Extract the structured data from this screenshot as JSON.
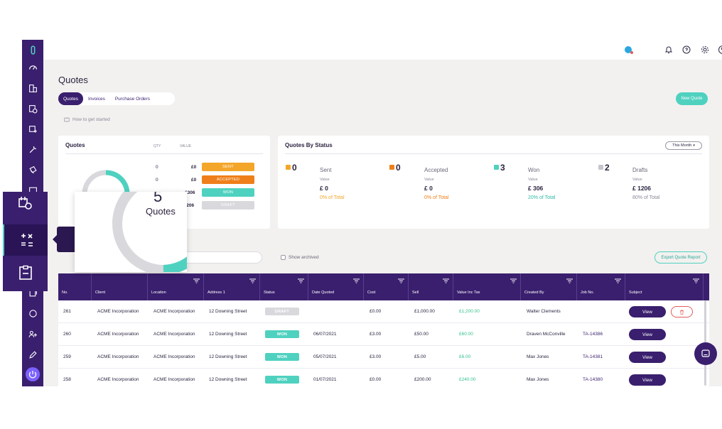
{
  "page": {
    "title": "Quotes"
  },
  "tabs": [
    {
      "label": "Quotes",
      "active": true
    },
    {
      "label": "Invoices",
      "active": false
    },
    {
      "label": "Purchase Orders",
      "active": false
    }
  ],
  "new_quote_label": "New Quote",
  "how_to_label": "How to get started",
  "quotes_card": {
    "title": "Quotes",
    "qty_header": "QTY",
    "value_header": "VALUE",
    "donut_center": "5",
    "donut_label": "Quotes",
    "rows": [
      {
        "qty": "0",
        "value": "£0",
        "status": "SENT",
        "color": "#f4a62a"
      },
      {
        "qty": "0",
        "value": "£0",
        "status": "ACCEPTED",
        "color": "#ef7f1a"
      },
      {
        "qty": "",
        "value": "£306",
        "status": "WON",
        "color": "#4fd1c0"
      },
      {
        "qty": "",
        "value": "£1206",
        "status": "DRAFT",
        "color": "#d9d8dc"
      }
    ]
  },
  "status_card": {
    "title": "Quotes By Status",
    "period": "This Month",
    "items": [
      {
        "count": "0",
        "label": "Sent",
        "value_label": "Value",
        "value": "£ 0",
        "pct": "0% of Total",
        "color": "#f4a62a",
        "pct_color": "#f4a62a"
      },
      {
        "count": "0",
        "label": "Accepted",
        "value_label": "Value",
        "value": "£ 0",
        "pct": "0% of Total",
        "color": "#ef7f1a",
        "pct_color": "#ef7f1a"
      },
      {
        "count": "3",
        "label": "Won",
        "value_label": "Value",
        "value": "£ 306",
        "pct": "20% of Total",
        "color": "#4fd1c0",
        "pct_color": "#2fb9a5"
      },
      {
        "count": "2",
        "label": "Drafts",
        "value_label": "Value",
        "value": "£ 1206",
        "pct": "80% of Total",
        "color": "#c7c6cc",
        "pct_color": "#8a8797"
      }
    ]
  },
  "show_archived_label": "Show archived",
  "export_label": "Export Quote Report",
  "table": {
    "headers": [
      "No.",
      "Client",
      "Location",
      "Address 1",
      "Status",
      "Date Quoted",
      "Cost",
      "Sell",
      "Value Inc Tax",
      "Created By",
      "Job No.",
      "Subject"
    ],
    "rows": [
      {
        "no": "261",
        "client": "ACME Incorporation",
        "location": "ACME Incorporation",
        "address": "12 Downing Street",
        "status": "DRAFT",
        "status_color": "#d9d8dc",
        "date": "",
        "cost": "£0.00",
        "sell": "£1,000.00",
        "value": "£1,200.00",
        "created_by": "Walter Clements",
        "job": "",
        "view": "View"
      },
      {
        "no": "260",
        "client": "ACME Incorporation",
        "location": "ACME Incorporation",
        "address": "12 Downing Street",
        "status": "WON",
        "status_color": "#4fd1c0",
        "date": "06/07/2021",
        "cost": "£3.00",
        "sell": "£50.00",
        "value": "£60.00",
        "created_by": "Draven McConville",
        "job": "TA-14386",
        "view": "View"
      },
      {
        "no": "259",
        "client": "ACME Incorporation",
        "location": "ACME Incorporation",
        "address": "12 Downing Street",
        "status": "WON",
        "status_color": "#4fd1c0",
        "date": "05/07/2021",
        "cost": "£3.00",
        "sell": "£5.00",
        "value": "£6.00",
        "created_by": "Max Jones",
        "job": "TA-14381",
        "view": "View"
      },
      {
        "no": "258",
        "client": "ACME Incorporation",
        "location": "ACME Incorporation",
        "address": "12 Downing Street",
        "status": "WON",
        "status_color": "#4fd1c0",
        "date": "01/07/2021",
        "cost": "£0.00",
        "sell": "£200.00",
        "value": "£240.00",
        "created_by": "Max Jones",
        "job": "TA-14380",
        "view": "View"
      }
    ]
  },
  "tooltip": {
    "label": "Accounting"
  },
  "zoom": {
    "count": "5",
    "label": "Quotes"
  },
  "colors": {
    "brand": "#3a1f6e",
    "accent": "#4fd1c0"
  }
}
